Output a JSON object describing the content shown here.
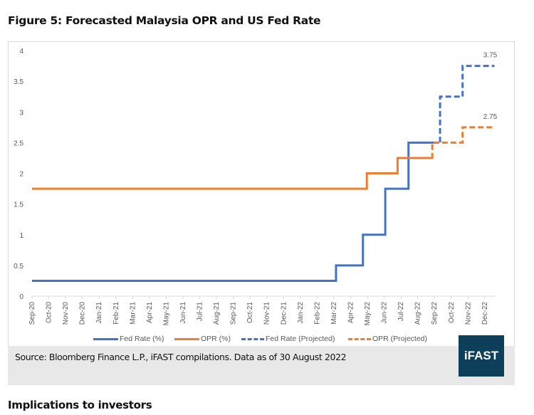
{
  "title": "Figure 5: Forecasted Malaysia OPR and US Fed Rate",
  "source": "Source: Bloomberg Finance L.P., iFAST compilations. Data as of 30 August 2022",
  "logo_text": "iFAST",
  "subheading": "Implications to investors",
  "chart_data": {
    "type": "line",
    "step": true,
    "title": "",
    "xlabel": "",
    "ylabel": "",
    "ylim": [
      0,
      4
    ],
    "yticks": [
      "0",
      "0.5",
      "1",
      "1.5",
      "2",
      "2.5",
      "3",
      "3.5",
      "4"
    ],
    "x_categories": [
      "Sep-20",
      "Oct-20",
      "Nov-20",
      "Dec-20",
      "Jan-21",
      "Feb-21",
      "Mar-21",
      "Apr-21",
      "May-21",
      "Jun-21",
      "Jul-21",
      "Aug-21",
      "Sep-21",
      "Oct-21",
      "Nov-21",
      "Dec-21",
      "Jan-22",
      "Feb-22",
      "Mar-22",
      "Apr-22",
      "May-22",
      "Jun-22",
      "Jul-22",
      "Aug-22",
      "Sep-22",
      "Oct-22",
      "Nov-22",
      "Dec-22"
    ],
    "grid": false,
    "legend_position": "bottom",
    "series": [
      {
        "name": "Fed Rate (%)",
        "color": "#4472c4",
        "style": "solid",
        "steps": [
          [
            "2020-09-01",
            0.25
          ],
          [
            "2022-03-05",
            0.5
          ],
          [
            "2022-04-23",
            1.0
          ],
          [
            "2022-06-03",
            1.75
          ],
          [
            "2022-07-15",
            2.5
          ]
        ],
        "end": "2022-08-27"
      },
      {
        "name": "OPR (%)",
        "color": "#ed7d31",
        "style": "solid",
        "steps": [
          [
            "2020-09-01",
            1.75
          ],
          [
            "2022-04-30",
            2.0
          ],
          [
            "2022-06-25",
            2.25
          ]
        ],
        "end": "2022-08-27"
      },
      {
        "name": "Fed Rate (Projected)",
        "color": "#4472c4",
        "style": "dashed",
        "steps": [
          [
            "2022-08-27",
            2.5
          ],
          [
            "2022-09-11",
            3.25
          ],
          [
            "2022-10-22",
            3.75
          ]
        ],
        "end": "2022-12-19",
        "end_label": "3.75"
      },
      {
        "name": "OPR (Projected)",
        "color": "#ed7d31",
        "style": "dashed",
        "steps": [
          [
            "2022-08-27",
            2.25
          ],
          [
            "2022-08-28",
            2.5
          ],
          [
            "2022-10-22",
            2.75
          ]
        ],
        "end": "2022-12-19",
        "end_label": "2.75"
      }
    ]
  }
}
